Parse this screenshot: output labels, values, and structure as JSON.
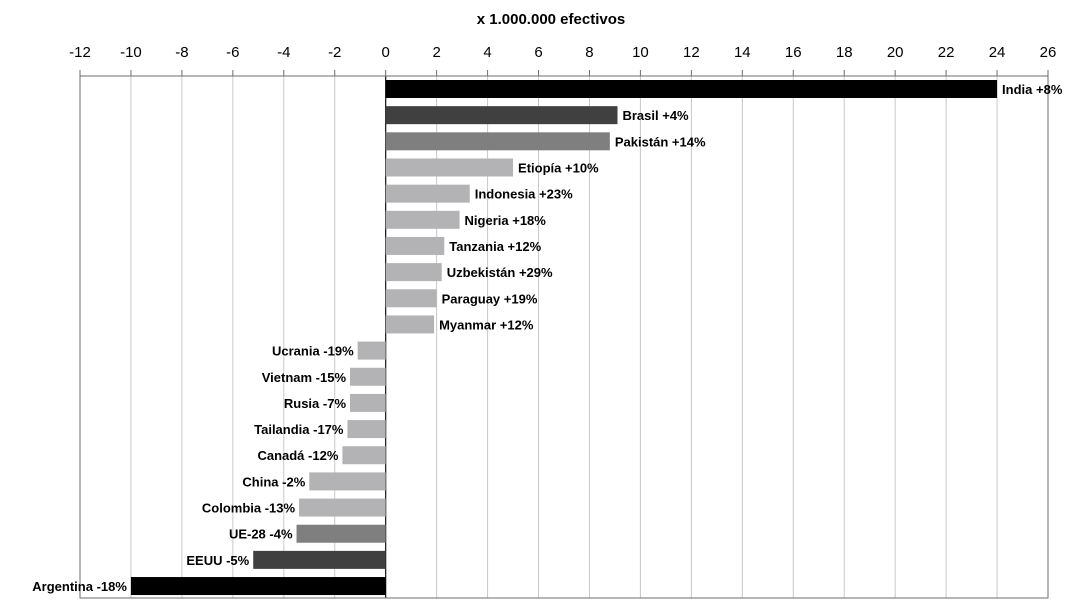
{
  "chart_data": {
    "type": "bar",
    "orientation": "horizontal",
    "title": "x 1.000.000 efectivos",
    "xlim": [
      -12,
      26
    ],
    "x_ticks": [
      "-12",
      "-10",
      "-8",
      "-6",
      "-4",
      "-2",
      "0",
      "2",
      "4",
      "6",
      "8",
      "10",
      "12",
      "14",
      "16",
      "18",
      "20",
      "22",
      "24",
      "26"
    ],
    "x_tick_values": [
      -12,
      -10,
      -8,
      -6,
      -4,
      -2,
      0,
      2,
      4,
      6,
      8,
      10,
      12,
      14,
      16,
      18,
      20,
      22,
      24,
      26
    ],
    "grid": "vertical",
    "bars": [
      {
        "label": "India +8%",
        "value": 24.0,
        "color": "#000000"
      },
      {
        "label": "Brasil +4%",
        "value": 9.1,
        "color": "#404040"
      },
      {
        "label": "Pakistán +14%",
        "value": 8.8,
        "color": "#7f7f7f"
      },
      {
        "label": "Etiopía +10%",
        "value": 5.0,
        "color": "#b3b3b5"
      },
      {
        "label": "Indonesia +23%",
        "value": 3.3,
        "color": "#b3b3b5"
      },
      {
        "label": "Nigeria +18%",
        "value": 2.9,
        "color": "#b3b3b5"
      },
      {
        "label": "Tanzania +12%",
        "value": 2.3,
        "color": "#b3b3b5"
      },
      {
        "label": "Uzbekistán +29%",
        "value": 2.2,
        "color": "#b3b3b5"
      },
      {
        "label": "Paraguay +19%",
        "value": 2.0,
        "color": "#b3b3b5"
      },
      {
        "label": "Myanmar +12%",
        "value": 1.9,
        "color": "#b3b3b5"
      },
      {
        "label": "Ucrania -19%",
        "value": -1.1,
        "color": "#b3b3b5"
      },
      {
        "label": "Vietnam -15%",
        "value": -1.4,
        "color": "#b3b3b5"
      },
      {
        "label": "Rusia -7%",
        "value": -1.4,
        "color": "#b3b3b5"
      },
      {
        "label": "Tailandia -17%",
        "value": -1.5,
        "color": "#b3b3b5"
      },
      {
        "label": "Canadá -12%",
        "value": -1.7,
        "color": "#b3b3b5"
      },
      {
        "label": "China -2%",
        "value": -3.0,
        "color": "#b3b3b5"
      },
      {
        "label": "Colombia -13%",
        "value": -3.4,
        "color": "#b3b3b5"
      },
      {
        "label": "UE-28 -4%",
        "value": -3.5,
        "color": "#7f7f7f"
      },
      {
        "label": "EEUU -5%",
        "value": -5.2,
        "color": "#404040"
      },
      {
        "label": "Argentina -18%",
        "value": -10.0,
        "color": "#000000"
      }
    ]
  }
}
